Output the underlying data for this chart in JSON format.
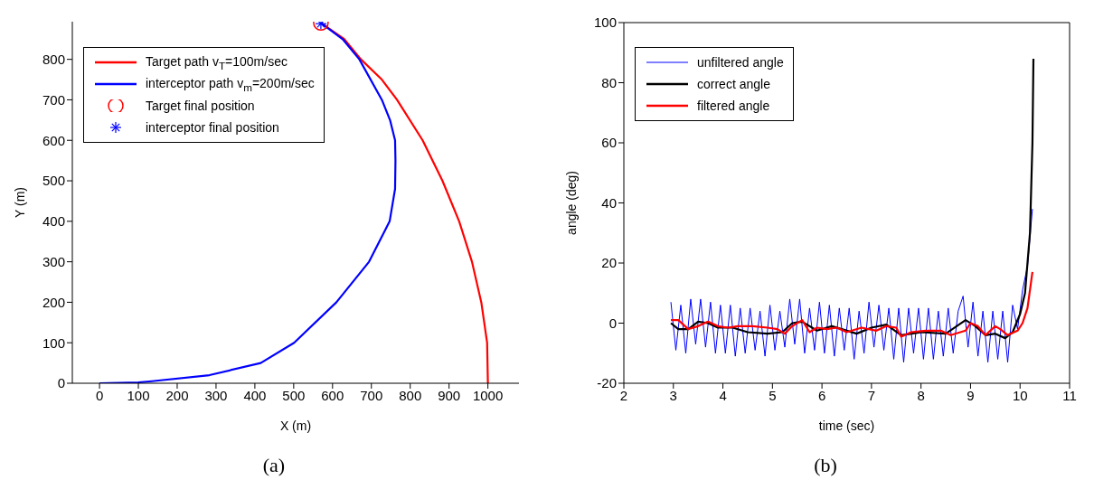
{
  "chart_data": [
    {
      "type": "line",
      "xlabel": "X (m)",
      "ylabel": "Y (m)",
      "xlim": [
        -70,
        1080
      ],
      "ylim": [
        0,
        893
      ],
      "xticks": [
        0,
        100,
        200,
        300,
        400,
        500,
        600,
        700,
        800,
        900,
        1000
      ],
      "yticks": [
        0,
        100,
        200,
        300,
        400,
        500,
        600,
        700,
        800
      ],
      "legend": "top left",
      "annotations": [
        "(a)"
      ],
      "series": [
        {
          "name": "Target path v$_{T}$=100m/sec",
          "color": "#ff0000",
          "x": [
            1000,
            998,
            983,
            959,
            926,
            883,
            832,
            766,
            727,
            673,
            630,
            570
          ],
          "values": [
            0,
            100,
            200,
            300,
            400,
            500,
            600,
            700,
            750,
            800,
            850,
            890
          ]
        },
        {
          "name": "interceptor path v$_{m}$=200m/sec",
          "color": "#0000ff",
          "x": [
            0,
            100,
            135,
            283,
            415,
            501,
            610,
            694,
            747,
            761,
            762,
            761,
            748,
            727,
            669,
            626,
            570
          ],
          "values": [
            0,
            2,
            5,
            20,
            50,
            100,
            200,
            300,
            400,
            480,
            550,
            600,
            650,
            700,
            800,
            850,
            890
          ]
        },
        {
          "type": "scatter",
          "name": "Target final position",
          "color": "#ff0000",
          "marker": "circle",
          "x": [
            570
          ],
          "values": [
            890
          ]
        },
        {
          "type": "scatter",
          "name": "interceptor final position",
          "color": "#0000ff",
          "marker": "cross",
          "x": [
            570
          ],
          "values": [
            888
          ]
        }
      ]
    },
    {
      "type": "line",
      "xlabel": "time (sec)",
      "ylabel": "angle (deg)",
      "xlim": [
        2,
        11
      ],
      "ylim": [
        -20,
        100
      ],
      "xticks": [
        2,
        3,
        4,
        5,
        6,
        7,
        8,
        9,
        10,
        11
      ],
      "yticks": [
        -20,
        0,
        20,
        40,
        60,
        80,
        100
      ],
      "legend": "top left",
      "annotations": [
        "(b)"
      ],
      "series": [
        {
          "name": "unfiltered angle",
          "color": "#0000ff",
          "x": [
            2.95,
            3.05,
            3.15,
            3.25,
            3.35,
            3.45,
            3.55,
            3.65,
            3.75,
            3.85,
            3.95,
            4.05,
            4.15,
            4.25,
            4.35,
            4.45,
            4.55,
            4.65,
            4.75,
            4.85,
            4.95,
            5.05,
            5.15,
            5.25,
            5.35,
            5.45,
            5.55,
            5.65,
            5.75,
            5.85,
            5.95,
            6.05,
            6.15,
            6.25,
            6.35,
            6.45,
            6.55,
            6.65,
            6.75,
            6.85,
            6.95,
            7.05,
            7.15,
            7.25,
            7.35,
            7.45,
            7.55,
            7.65,
            7.75,
            7.85,
            7.95,
            8.05,
            8.15,
            8.25,
            8.35,
            8.45,
            8.55,
            8.65,
            8.75,
            8.85,
            8.95,
            9.05,
            9.15,
            9.25,
            9.35,
            9.45,
            9.55,
            9.65,
            9.75,
            9.85,
            9.95,
            10.05,
            10.15,
            10.25
          ],
          "values": [
            7,
            -9,
            6,
            -10,
            8,
            -7,
            8,
            -8,
            7,
            -10,
            6,
            -10,
            6,
            -11,
            5,
            -10,
            5,
            -9,
            4,
            -11,
            6,
            -9,
            4,
            -8,
            8,
            -7,
            8,
            -10,
            5,
            -9,
            7,
            -10,
            6,
            -11,
            5,
            -9,
            5,
            -12,
            4,
            -10,
            7,
            -8,
            6,
            -9,
            5,
            -12,
            5,
            -13,
            5,
            -10,
            5,
            -12,
            5,
            -12,
            4,
            -11,
            5,
            -10,
            4,
            9,
            -8,
            7,
            -11,
            4,
            -13,
            4,
            -12,
            4,
            -13,
            6,
            -2,
            11,
            19,
            38
          ]
        },
        {
          "name": "correct angle",
          "color": "#000000",
          "x": [
            2.95,
            3.1,
            3.3,
            3.5,
            3.7,
            3.9,
            4.2,
            4.5,
            4.9,
            5.2,
            5.4,
            5.6,
            5.9,
            6.2,
            6.4,
            6.7,
            7.0,
            7.3,
            7.6,
            8.0,
            8.5,
            8.9,
            9.1,
            9.3,
            9.5,
            9.7,
            9.85,
            10.0,
            10.1,
            10.2,
            10.25,
            10.27
          ],
          "values": [
            0,
            -2,
            -2,
            0.5,
            0,
            -1.5,
            -1.5,
            -3,
            -3.5,
            -3,
            0,
            0.5,
            -2.5,
            -1,
            -2,
            -3.5,
            -1.5,
            -0.5,
            -4,
            -3,
            -3.5,
            1,
            -1,
            -4,
            -3.5,
            -5,
            -3,
            3,
            10,
            30,
            60,
            88
          ]
        },
        {
          "name": "filtered angle",
          "color": "#ff0000",
          "x": [
            2.95,
            3.1,
            3.3,
            3.5,
            3.7,
            3.9,
            4.1,
            4.3,
            4.6,
            4.9,
            5.1,
            5.25,
            5.4,
            5.6,
            5.75,
            5.9,
            6.1,
            6.3,
            6.5,
            6.8,
            7.1,
            7.3,
            7.5,
            7.6,
            7.8,
            8.1,
            8.4,
            8.6,
            8.9,
            9.0,
            9.15,
            9.3,
            9.5,
            9.6,
            9.75,
            9.95,
            10.05,
            10.15,
            10.25
          ],
          "values": [
            1,
            1,
            -2,
            -1,
            0.5,
            -1,
            -1.5,
            -1,
            -1,
            -1.5,
            -2,
            -3.5,
            -1,
            1,
            -3,
            -1.5,
            -2,
            -1.5,
            -3,
            -1.5,
            -2.5,
            -1,
            -1.5,
            -4.5,
            -3,
            -2.5,
            -2.5,
            -4,
            -2.5,
            0,
            -1,
            -4,
            -1,
            -2,
            -4,
            -2.5,
            0,
            5,
            17
          ]
        }
      ]
    }
  ]
}
